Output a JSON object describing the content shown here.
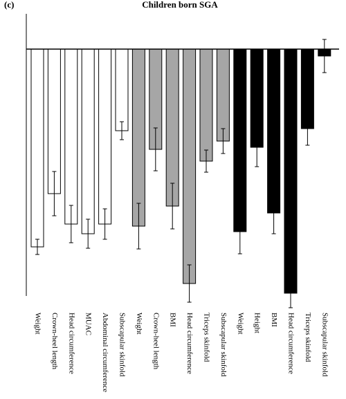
{
  "chart_data": {
    "type": "bar",
    "panel_label": "(c)",
    "title": "Children born SGA",
    "categories": [
      "Weight",
      "Crown-heel length",
      "Head circumference",
      "MUAC",
      "Abdominal circumference",
      "Subscapular skinfold",
      "Weight",
      "Crown-heel length",
      "BMI",
      "Head circumference",
      "Triceps skinfold",
      "Subscapular skinfold",
      "Weight",
      "Height",
      "BMI",
      "Head circumference",
      "Triceps skinfold",
      "Subscapular skinfold"
    ],
    "values": [
      -2.86,
      -2.09,
      -2.53,
      -2.67,
      -2.53,
      -1.18,
      -2.56,
      -1.45,
      -2.27,
      -3.39,
      -1.62,
      -1.33,
      -2.64,
      -1.42,
      -2.37,
      -3.53,
      -1.15,
      -0.1
    ],
    "errors": [
      0.11,
      0.32,
      0.27,
      0.21,
      0.22,
      0.13,
      0.33,
      0.31,
      0.33,
      0.27,
      0.16,
      0.18,
      0.32,
      0.28,
      0.3,
      0.21,
      0.24,
      0.24
    ],
    "colors": [
      "#ffffff",
      "#ffffff",
      "#ffffff",
      "#ffffff",
      "#ffffff",
      "#ffffff",
      "#a6a6a6",
      "#a6a6a6",
      "#a6a6a6",
      "#a6a6a6",
      "#a6a6a6",
      "#a6a6a6",
      "#000000",
      "#000000",
      "#000000",
      "#000000",
      "#000000",
      "#000000"
    ],
    "ylim": [
      -3.57,
      0.51
    ]
  }
}
